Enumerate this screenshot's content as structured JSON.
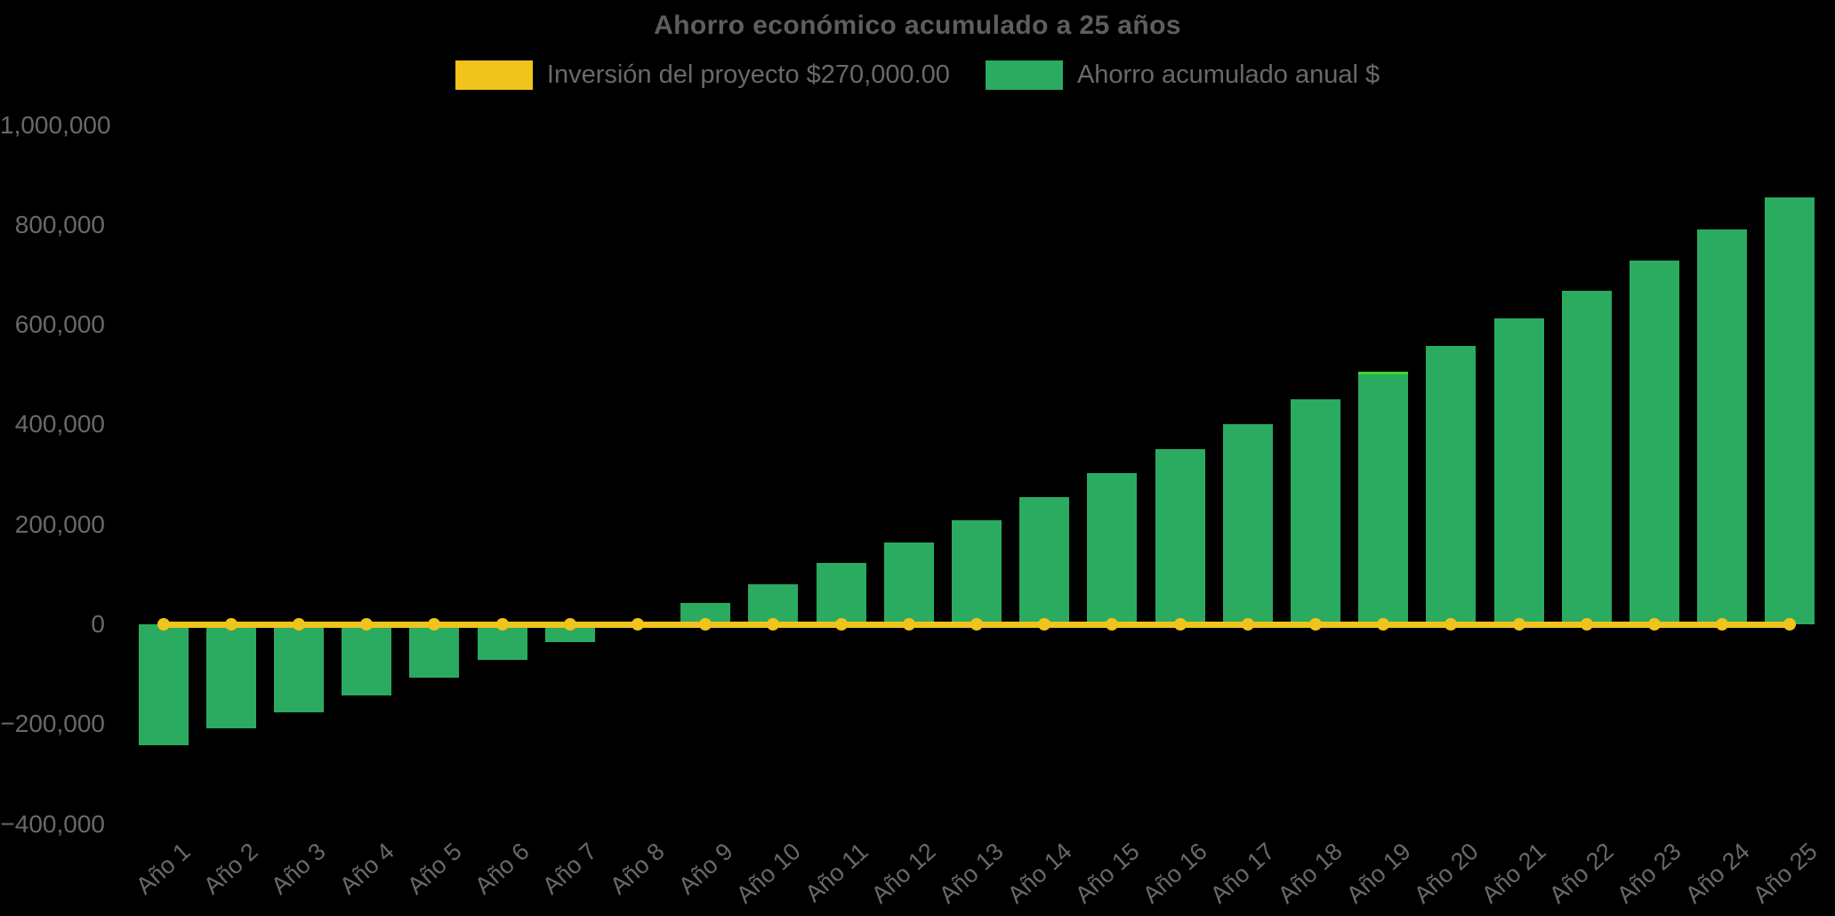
{
  "chart_data": {
    "type": "bar",
    "title": "Ahorro económico acumulado a 25 años",
    "categories": [
      "Año 1",
      "Año 2",
      "Año 3",
      "Año 4",
      "Año 5",
      "Año 6",
      "Año 7",
      "Año 8",
      "Año 9",
      "Año 10",
      "Año 11",
      "Año 12",
      "Año 13",
      "Año 14",
      "Año 15",
      "Año 16",
      "Año 17",
      "Año 18",
      "Año 19",
      "Año 20",
      "Año 21",
      "Año 22",
      "Año 23",
      "Año 24",
      "Año 25"
    ],
    "series": [
      {
        "name": "Inversión del proyecto $270,000.00",
        "type": "line",
        "color": "#F0C41C",
        "values": [
          0,
          0,
          0,
          0,
          0,
          0,
          0,
          0,
          0,
          0,
          0,
          0,
          0,
          0,
          0,
          0,
          0,
          0,
          0,
          0,
          0,
          0,
          0,
          0,
          0
        ]
      },
      {
        "name": "Ahorro acumulado anual $",
        "type": "bar",
        "color": "#2BAB60",
        "values": [
          -242000,
          -209000,
          -177000,
          -143000,
          -107000,
          -71000,
          -35000,
          4000,
          42000,
          81000,
          122000,
          164000,
          208000,
          255000,
          303000,
          351000,
          400000,
          450000,
          506000,
          557000,
          613000,
          667000,
          728000,
          790000,
          854000
        ]
      }
    ],
    "ylim": [
      -400000,
      1000000
    ],
    "ytick_step": 200000,
    "ytick_labels": [
      "1,000,000",
      "800,000",
      "600,000",
      "400,000",
      "200,000",
      "0",
      "−200,000",
      "−400,000"
    ],
    "grid": false,
    "legend_position": "top-center",
    "background_color": "#000000",
    "title_color": "#5E5E5E",
    "text_color": "#696969",
    "highlighted_bar": "Año 19",
    "highlight_color": "#3ED42F"
  }
}
